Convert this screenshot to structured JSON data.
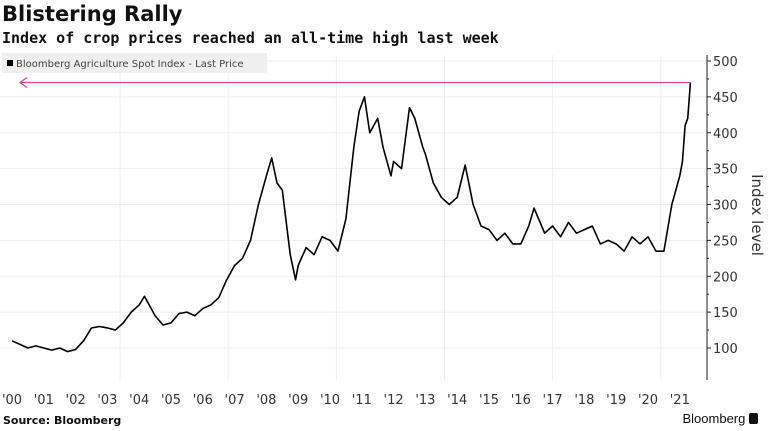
{
  "title": "Blistering Rally",
  "subtitle": "Index of crop prices reached an all-time high last week",
  "source": "Source: Bloomberg",
  "brand": "Bloomberg",
  "chart_data": {
    "type": "line",
    "title": "Blistering Rally",
    "ylabel": "Index level",
    "xlabel": "",
    "ylim": [
      55,
      505
    ],
    "yticks": [
      100,
      150,
      200,
      250,
      300,
      350,
      400,
      450,
      500
    ],
    "xtick_labels": [
      "'00",
      "'01",
      "'02",
      "'03",
      "'04",
      "'05",
      "'06",
      "'07",
      "'08",
      "'09",
      "'10",
      "'11",
      "'12",
      "'13",
      "'14",
      "'15",
      "'16",
      "'17",
      "'18",
      "'19",
      "'20",
      "'21"
    ],
    "grid": true,
    "legend_position": "top-left",
    "reference_line": {
      "value": 470,
      "color": "#e8409a"
    },
    "series": [
      {
        "name": "Bloomberg Agriculture Spot Index - Last Price",
        "color": "#000000",
        "points": [
          [
            "2000-01",
            110
          ],
          [
            "2000-04",
            105
          ],
          [
            "2000-07",
            100
          ],
          [
            "2000-10",
            103
          ],
          [
            "2001-01",
            100
          ],
          [
            "2001-04",
            97
          ],
          [
            "2001-07",
            100
          ],
          [
            "2001-10",
            95
          ],
          [
            "2002-01",
            98
          ],
          [
            "2002-04",
            110
          ],
          [
            "2002-07",
            128
          ],
          [
            "2002-10",
            130
          ],
          [
            "2003-01",
            128
          ],
          [
            "2003-04",
            125
          ],
          [
            "2003-07",
            135
          ],
          [
            "2003-10",
            150
          ],
          [
            "2004-01",
            160
          ],
          [
            "2004-03",
            172
          ],
          [
            "2004-07",
            145
          ],
          [
            "2004-10",
            132
          ],
          [
            "2005-01",
            135
          ],
          [
            "2005-04",
            148
          ],
          [
            "2005-07",
            150
          ],
          [
            "2005-10",
            145
          ],
          [
            "2006-01",
            155
          ],
          [
            "2006-04",
            160
          ],
          [
            "2006-07",
            170
          ],
          [
            "2006-10",
            195
          ],
          [
            "2007-01",
            215
          ],
          [
            "2007-04",
            225
          ],
          [
            "2007-07",
            250
          ],
          [
            "2007-10",
            300
          ],
          [
            "2008-01",
            340
          ],
          [
            "2008-03",
            365
          ],
          [
            "2008-05",
            330
          ],
          [
            "2008-07",
            320
          ],
          [
            "2008-10",
            230
          ],
          [
            "2008-12",
            195
          ],
          [
            "2009-01",
            215
          ],
          [
            "2009-04",
            240
          ],
          [
            "2009-07",
            230
          ],
          [
            "2009-10",
            255
          ],
          [
            "2010-01",
            250
          ],
          [
            "2010-04",
            235
          ],
          [
            "2010-07",
            280
          ],
          [
            "2010-10",
            380
          ],
          [
            "2010-12",
            430
          ],
          [
            "2011-02",
            450
          ],
          [
            "2011-04",
            400
          ],
          [
            "2011-07",
            420
          ],
          [
            "2011-09",
            380
          ],
          [
            "2011-12",
            340
          ],
          [
            "2012-01",
            360
          ],
          [
            "2012-04",
            350
          ],
          [
            "2012-07",
            435
          ],
          [
            "2012-09",
            420
          ],
          [
            "2012-12",
            380
          ],
          [
            "2013-01",
            370
          ],
          [
            "2013-04",
            330
          ],
          [
            "2013-07",
            310
          ],
          [
            "2013-10",
            300
          ],
          [
            "2014-01",
            310
          ],
          [
            "2014-04",
            355
          ],
          [
            "2014-07",
            300
          ],
          [
            "2014-10",
            270
          ],
          [
            "2015-01",
            265
          ],
          [
            "2015-04",
            250
          ],
          [
            "2015-07",
            260
          ],
          [
            "2015-10",
            245
          ],
          [
            "2016-01",
            245
          ],
          [
            "2016-04",
            270
          ],
          [
            "2016-06",
            295
          ],
          [
            "2016-10",
            260
          ],
          [
            "2017-01",
            270
          ],
          [
            "2017-04",
            255
          ],
          [
            "2017-07",
            275
          ],
          [
            "2017-10",
            260
          ],
          [
            "2018-01",
            265
          ],
          [
            "2018-04",
            270
          ],
          [
            "2018-07",
            245
          ],
          [
            "2018-10",
            250
          ],
          [
            "2019-01",
            245
          ],
          [
            "2019-04",
            235
          ],
          [
            "2019-07",
            255
          ],
          [
            "2019-10",
            245
          ],
          [
            "2020-01",
            255
          ],
          [
            "2020-04",
            235
          ],
          [
            "2020-07",
            235
          ],
          [
            "2020-10",
            300
          ],
          [
            "2021-01",
            340
          ],
          [
            "2021-02",
            360
          ],
          [
            "2021-03",
            410
          ],
          [
            "2021-04",
            420
          ],
          [
            "2021-05",
            470
          ]
        ]
      }
    ]
  }
}
